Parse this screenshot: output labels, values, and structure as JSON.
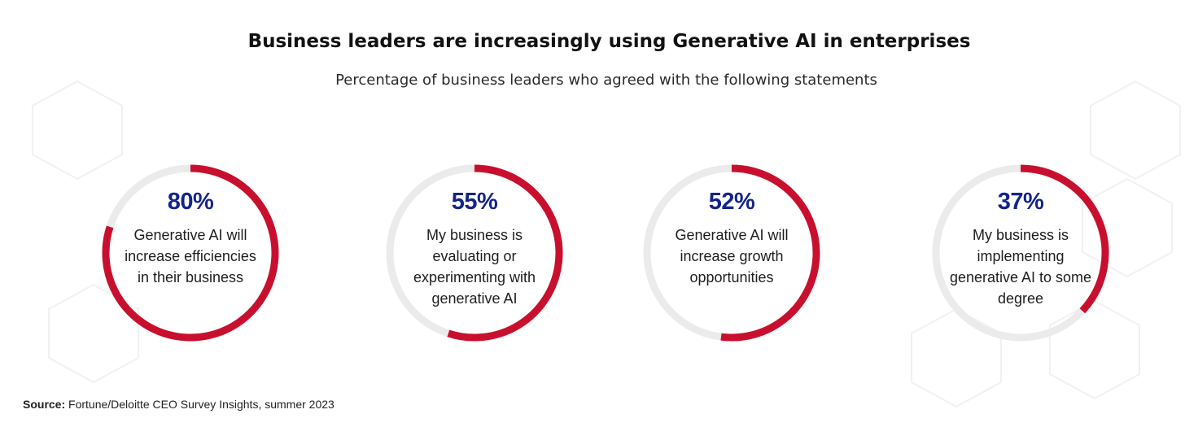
{
  "header": {
    "title": "Business leaders are increasingly using Generative AI in enterprises",
    "subtitle": "Percentage of business leaders who agreed with the following statements"
  },
  "chart_data": {
    "type": "donut",
    "title": "Business leaders are increasingly using Generative AI in enterprises",
    "subtitle": "Percentage of business leaders who agreed with the following statements",
    "unit": "%",
    "items": [
      {
        "value": 80,
        "value_label": "80%",
        "statement": "Generative AI will increase efficiencies in their business"
      },
      {
        "value": 55,
        "value_label": "55%",
        "statement": "My business is evaluating or experimenting with generative AI"
      },
      {
        "value": 52,
        "value_label": "52%",
        "statement": "Generative AI will increase growth opportunities"
      },
      {
        "value": 37,
        "value_label": "37%",
        "statement": "My business is implementing generative AI to some degree"
      }
    ]
  },
  "footer": {
    "source_label": "Source:",
    "source_text": "Fortune/Deloitte CEO Survey Insights, summer 2023"
  },
  "colors": {
    "arc": "#c8102e",
    "track": "#ebebeb",
    "value_text": "#14248a"
  }
}
